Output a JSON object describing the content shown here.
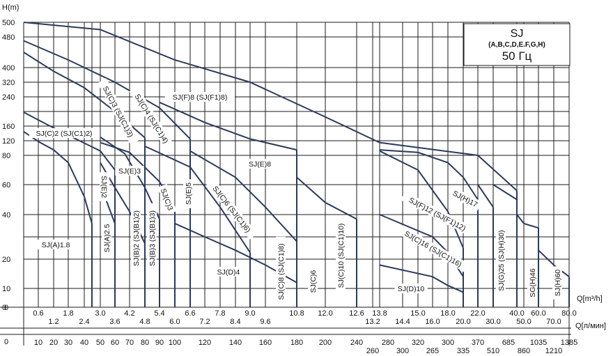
{
  "chart_data": {
    "type": "line",
    "title": "SJ",
    "subtitle": "(A,B,C,D,E.F,G,H)",
    "frequency": "50 Гц",
    "y_axis_label": "H(m)",
    "x_axis_label_m3h": "Q[m³/h]",
    "x_axis_label_lmin": "Q[л/мин]",
    "h_ticks": [
      "500",
      "480",
      "400",
      "320",
      "240",
      "160",
      "120",
      "80",
      "60",
      "40",
      "20",
      "10",
      "0"
    ],
    "q_m3h_ticks_top": [
      "0.6",
      "1.8",
      "3.0",
      "4.2",
      "5.4",
      "6.6",
      "7.8",
      "9.0",
      "10.8",
      "12.0",
      "12.6",
      "13.8",
      "15.0",
      "18.0",
      "22.0",
      "40.0",
      "60.0",
      "80.0"
    ],
    "q_m3h_ticks_bottom": [
      "1.2",
      "2.4",
      "3.6",
      "4.8",
      "6.0",
      "7.2",
      "8.4",
      "9.6",
      "13.2",
      "14.4",
      "16.0",
      "20.0",
      "30.0",
      "50.0",
      "70.0"
    ],
    "q_m3h_zero": "0",
    "q_lmin_ticks_top": [
      "10",
      "20",
      "30",
      "40",
      "50",
      "60",
      "70",
      "80",
      "90",
      "100",
      "120",
      "140",
      "160",
      "180",
      "200",
      "240",
      "280",
      "320",
      "300",
      "370",
      "685",
      "1035",
      "1385"
    ],
    "q_lmin_ticks_bottom": [
      "260",
      "300",
      "265",
      "335",
      "510",
      "860",
      "1210"
    ],
    "q_lmin_zero": "0",
    "series": [
      {
        "name": "SJ(A)1.8",
        "x": [
          0.0,
          0.6,
          1.2,
          1.8,
          2.4,
          2.7
        ],
        "y": [
          145,
          118,
          95,
          75,
          52,
          36
        ]
      },
      {
        "name": "SJ(A)2.5",
        "x": [
          3.0,
          3.3,
          3.6
        ],
        "y": [
          60,
          47,
          36
        ]
      },
      {
        "name": "SJ(C)2 (SJ(C1)2)",
        "x": [
          0.0,
          1.0,
          2.0,
          3.0,
          3.6
        ],
        "y": [
          198,
          162,
          128,
          92,
          70
        ]
      },
      {
        "name": "SJ(B)2 (SJ(B1)2)",
        "x": [
          3.0,
          3.6,
          4.2,
          4.8
        ],
        "y": [
          75,
          58,
          42,
          27
        ]
      },
      {
        "name": "SJ(B)3 (SJ(B1)3)",
        "x": [
          3.0,
          4.0,
          4.8,
          5.4
        ],
        "y": [
          130,
          85,
          58,
          38
        ]
      },
      {
        "name": "SJ(C)3 (SJ(C1)3)",
        "x": [
          0.0,
          1.2,
          2.4,
          3.6,
          4.8
        ],
        "y": [
          440,
          380,
          290,
          200,
          128
        ]
      },
      {
        "name": "SJ(E)3",
        "x": [
          3.0,
          4.2,
          5.4,
          6.0
        ],
        "y": [
          115,
          88,
          62,
          45
        ]
      },
      {
        "name": "SJ(C)4 (SJ(C1)4)",
        "x": [
          0.0,
          1.8,
          3.6,
          5.4,
          6.6
        ],
        "y": [
          470,
          420,
          320,
          210,
          125
        ]
      },
      {
        "name": "SJ(C)6 (SJ(C1)6)",
        "x": [
          4.8,
          6.6,
          7.8,
          9.0
        ],
        "y": [
          105,
          72,
          45,
          23
        ]
      },
      {
        "name": "SJ(F)8 (SJ(F1)8)",
        "x": [
          0.0,
          3.0,
          6.0,
          9.0,
          12.0,
          13.8,
          22.0,
          40.0
        ],
        "y": [
          500,
          490,
          420,
          320,
          185,
          115,
          80,
          56
        ]
      },
      {
        "name": "SJ(E)8",
        "x": [
          5.4,
          7.2,
          9.0,
          10.8
        ],
        "y": [
          225,
          170,
          125,
          95
        ]
      },
      {
        "name": "SJ(C)8 (SJ(C1)8)",
        "x": [
          6.6,
          8.4,
          9.6,
          10.8
        ],
        "y": [
          92,
          65,
          45,
          28
        ]
      },
      {
        "name": "SJ(D)4",
        "x": [
          6.0,
          7.2,
          8.4,
          9.6,
          10.8
        ],
        "y": [
          36,
          30,
          24,
          18,
          12
        ]
      },
      {
        "name": "SJ(C)10 (SJ(C1)10)",
        "x": [
          10.8,
          12.0,
          12.6
        ],
        "y": [
          65,
          48,
          38
        ]
      },
      {
        "name": "SJ(H)17",
        "x": [
          13.8,
          15.0,
          18.0,
          20.0,
          22.0
        ],
        "y": [
          95,
          88,
          75,
          65,
          50
        ]
      },
      {
        "name": "SJ(F)12 (SJ(F1)12)",
        "x": [
          13.8,
          15.0,
          18.0,
          20.0
        ],
        "y": [
          92,
          70,
          42,
          25
        ]
      },
      {
        "name": "SJ(C)16 (SJ(C1)16)",
        "x": [
          13.8,
          16.0,
          18.0,
          20.0
        ],
        "y": [
          40,
          30,
          23,
          14
        ]
      },
      {
        "name": "SJ(D)10",
        "x": [
          13.8,
          16.0,
          18.0,
          20.0
        ],
        "y": [
          18,
          14,
          11,
          8
        ]
      },
      {
        "name": "SJ(G)25 (SJ(G1)25)",
        "x": [
          22.0,
          30.0
        ],
        "y": [
          60,
          45
        ]
      },
      {
        "name": "SJ(H)30",
        "x": [
          30.0,
          40.0
        ],
        "y": [
          60,
          50
        ]
      },
      {
        "name": "SG(H)46",
        "x": [
          40.0,
          50.0,
          60.0
        ],
        "y": [
          40,
          36,
          34
        ]
      },
      {
        "name": "SJ(H)60",
        "x": [
          60.0,
          70.0,
          80.0
        ],
        "y": [
          24,
          18,
          14
        ]
      }
    ],
    "curve_labels": [
      {
        "text": "SJ(A)1.8",
        "series": "SJ(A)1.8",
        "rotate": 0
      },
      {
        "text": "SJ(A)2.5",
        "series": "SJ(A)2.5",
        "rotate": -90
      },
      {
        "text": "SJ(C)2 (SJ(C1)2)",
        "series": "SJ(C)2 (SJ(C1)2)",
        "rotate": 0
      },
      {
        "text": "SJ(E)2",
        "series": "",
        "rotate": 90
      },
      {
        "text": "SJ(B)2 (SJ(B1)2)",
        "series": "SJ(B)2 (SJ(B1)2)",
        "rotate": -90
      },
      {
        "text": "SJ(B)3 (SJ(B1)3)",
        "series": "SJ(B)3 (SJ(B1)3)",
        "rotate": -90
      },
      {
        "text": "SJ(C)3 (SJ(C1)3)",
        "series": "SJ(C)3 (SJ(C1)3)",
        "rotate": 62
      },
      {
        "text": "SJ(E)3",
        "series": "SJ(E)3",
        "rotate": 0
      },
      {
        "text": "SJ(C)4 (SJ(C1)4)",
        "series": "SJ(C)4 (SJ(C1)4)",
        "rotate": 58
      },
      {
        "text": "SJ(C)3",
        "series": "",
        "rotate": 70
      },
      {
        "text": "SJ(E)5",
        "series": "",
        "rotate": -90
      },
      {
        "text": "SJ(C)6 (SJ(C1)6)",
        "series": "SJ(C)6 (SJ(C1)6)",
        "rotate": 52
      },
      {
        "text": "SJ(F)8 (SJ(F1)8)",
        "series": "SJ(F)8 (SJ(F1)8)",
        "rotate": 0
      },
      {
        "text": "SJ(E)8",
        "series": "SJ(E)8",
        "rotate": 0
      },
      {
        "text": "SJ(D)4",
        "series": "SJ(D)4",
        "rotate": 0
      },
      {
        "text": "SJ(C)8 (SJ(C1)8)",
        "series": "SJ(C)8 (SJ(C1)8)",
        "rotate": -90
      },
      {
        "text": "SJ(C)6",
        "series": "",
        "rotate": -90
      },
      {
        "text": "SJ(C)10 (SJ(C1)10)",
        "series": "SJ(C)10 (SJ(C1)10)",
        "rotate": -90
      },
      {
        "text": "SJ(F)12 (SJ(F1)12)",
        "series": "SJ(F)12 (SJ(F1)12)",
        "rotate": 28
      },
      {
        "text": "SJ(C)16 (SJ(C1)16)",
        "series": "SJ(C)16 (SJ(C1)16)",
        "rotate": 30
      },
      {
        "text": "SJ(H)17",
        "series": "SJ(H)17",
        "rotate": 28
      },
      {
        "text": "SJ(D)10",
        "series": "SJ(D)10",
        "rotate": 0
      },
      {
        "text": "SJ(G)25 (SJ(H)30)",
        "series": "SJ(G)25 (SJ(G1)25)",
        "rotate": -90
      },
      {
        "text": "SG(H)46",
        "series": "SG(H)46",
        "rotate": -90
      },
      {
        "text": "SJ(H)60",
        "series": "SJ(H)60",
        "rotate": -90
      }
    ],
    "grid": true,
    "colors": {
      "curve": "#2a3a5c",
      "grid": "#1a1a1a"
    }
  }
}
